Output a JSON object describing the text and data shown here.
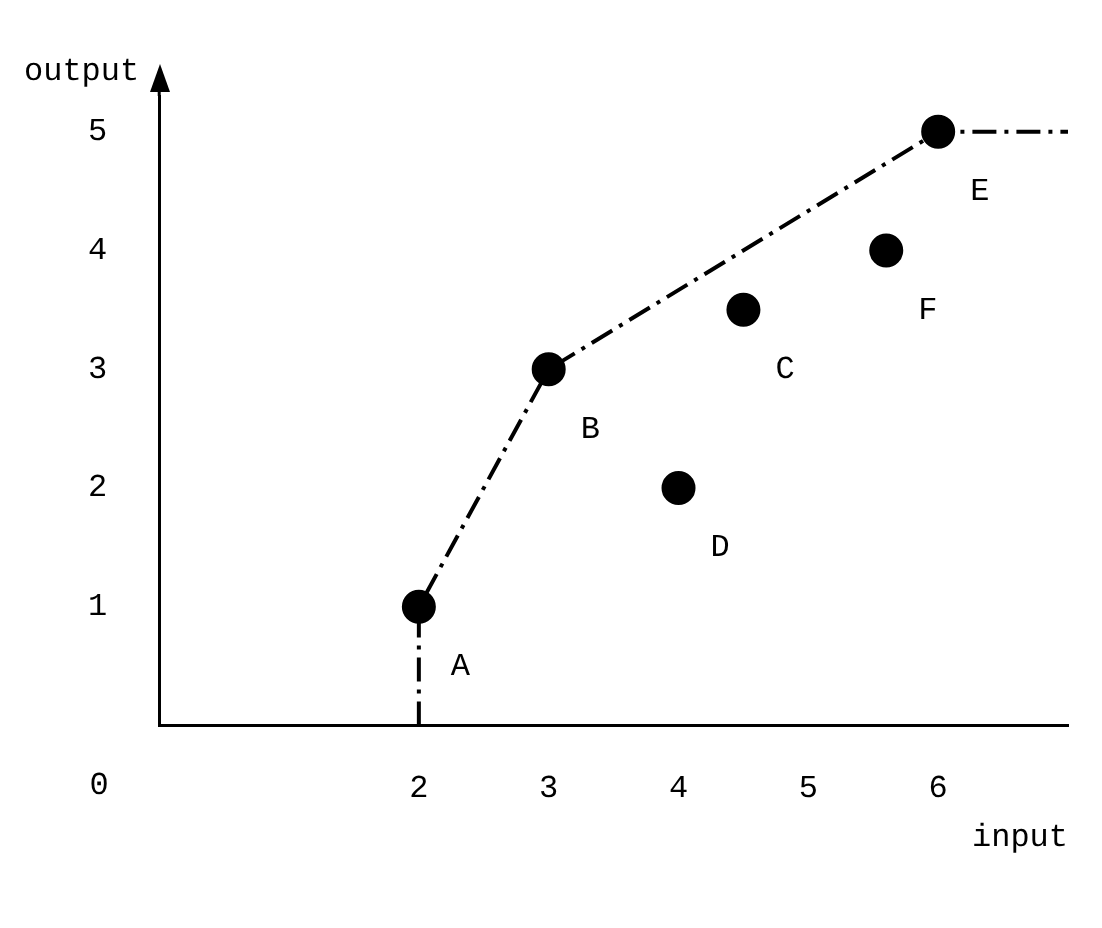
{
  "chart_data": {
    "type": "scatter",
    "xlabel": "input",
    "ylabel": "output",
    "xlim": [
      0,
      7
    ],
    "ylim": [
      0,
      5.3
    ],
    "xticks": [
      2,
      3,
      4,
      5,
      6
    ],
    "yticks": [
      1,
      2,
      3,
      4,
      5
    ],
    "grid": false,
    "legend": false,
    "marker": "circle",
    "series": [
      {
        "type": "line",
        "color": "#000000",
        "line_style": "dashed",
        "marker": "none",
        "x": [
          2,
          2,
          3,
          6,
          7
        ],
        "values": [
          0,
          1,
          3,
          5,
          5
        ]
      },
      {
        "type": "scatter",
        "color": "#000000",
        "x": [
          2,
          3,
          4.5,
          4,
          6,
          5.6
        ],
        "values": [
          1,
          3,
          3.5,
          2,
          5,
          4
        ]
      }
    ],
    "annotations": [
      "0",
      {
        "text": "A",
        "x": 2,
        "y": 1
      },
      {
        "text": "B",
        "x": 3,
        "y": 3
      },
      {
        "text": "C",
        "x": 4.5,
        "y": 3.5
      },
      {
        "text": "D",
        "x": 4,
        "y": 2
      },
      {
        "text": "E",
        "x": 6,
        "y": 5
      },
      {
        "text": "F",
        "x": 5.6,
        "y": 4
      }
    ]
  }
}
